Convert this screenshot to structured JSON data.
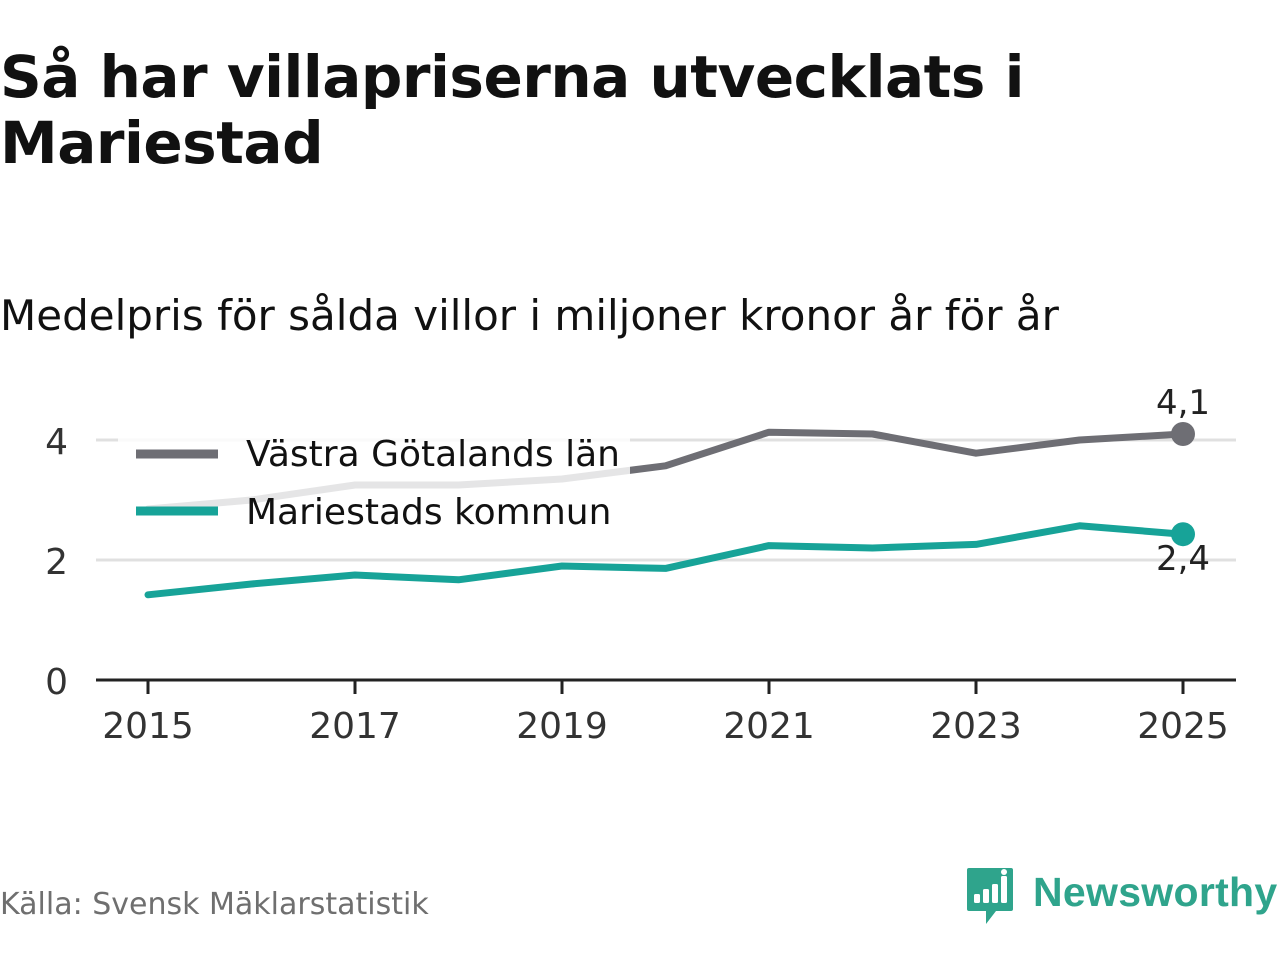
{
  "title": "Så har villapriserna utvecklats i Mariestad",
  "subtitle": "Medelpris för sålda villor i miljoner kronor år för år",
  "source": "Källa: Svensk Mäklarstatistik",
  "brand": {
    "name": "Newsworthy",
    "color": "#2fa48c",
    "icon": "newsworthy-logo-icon"
  },
  "colors": {
    "lan": "#6e6e74",
    "kommun": "#17a398",
    "grid": "#e0e0e0",
    "axis": "#222222",
    "tick_text": "#333333"
  },
  "chart_data": {
    "type": "line",
    "title": "Så har villapriserna utvecklats i Mariestad",
    "subtitle": "Medelpris för sålda villor i miljoner kronor år för år",
    "xlabel": "",
    "ylabel": "",
    "x": [
      2015,
      2016,
      2017,
      2018,
      2019,
      2020,
      2021,
      2022,
      2023,
      2024,
      2025
    ],
    "xlim": [
      2014.75,
      2025.5
    ],
    "ylim": [
      0,
      4.6
    ],
    "xticks": [
      2015,
      2017,
      2019,
      2021,
      2023,
      2025
    ],
    "xtick_labels": [
      "2015",
      "2017",
      "2019",
      "2021",
      "2023",
      "2025"
    ],
    "yticks": [
      0,
      2,
      4
    ],
    "ytick_labels": [
      "0",
      "2",
      "4"
    ],
    "grid": true,
    "legend_position": "top-left",
    "series": [
      {
        "name": "Västra Götalands län",
        "key": "lan",
        "values": [
          2.85,
          3.0,
          3.25,
          3.25,
          3.35,
          3.57,
          4.13,
          4.1,
          3.78,
          4.0,
          4.1
        ],
        "end_label": "4,1",
        "end_label_position": "above"
      },
      {
        "name": "Mariestads kommun",
        "key": "kommun",
        "values": [
          1.42,
          1.6,
          1.75,
          1.67,
          1.9,
          1.86,
          2.24,
          2.2,
          2.26,
          2.57,
          2.43
        ],
        "end_label": "2,4",
        "end_label_position": "below"
      }
    ]
  }
}
